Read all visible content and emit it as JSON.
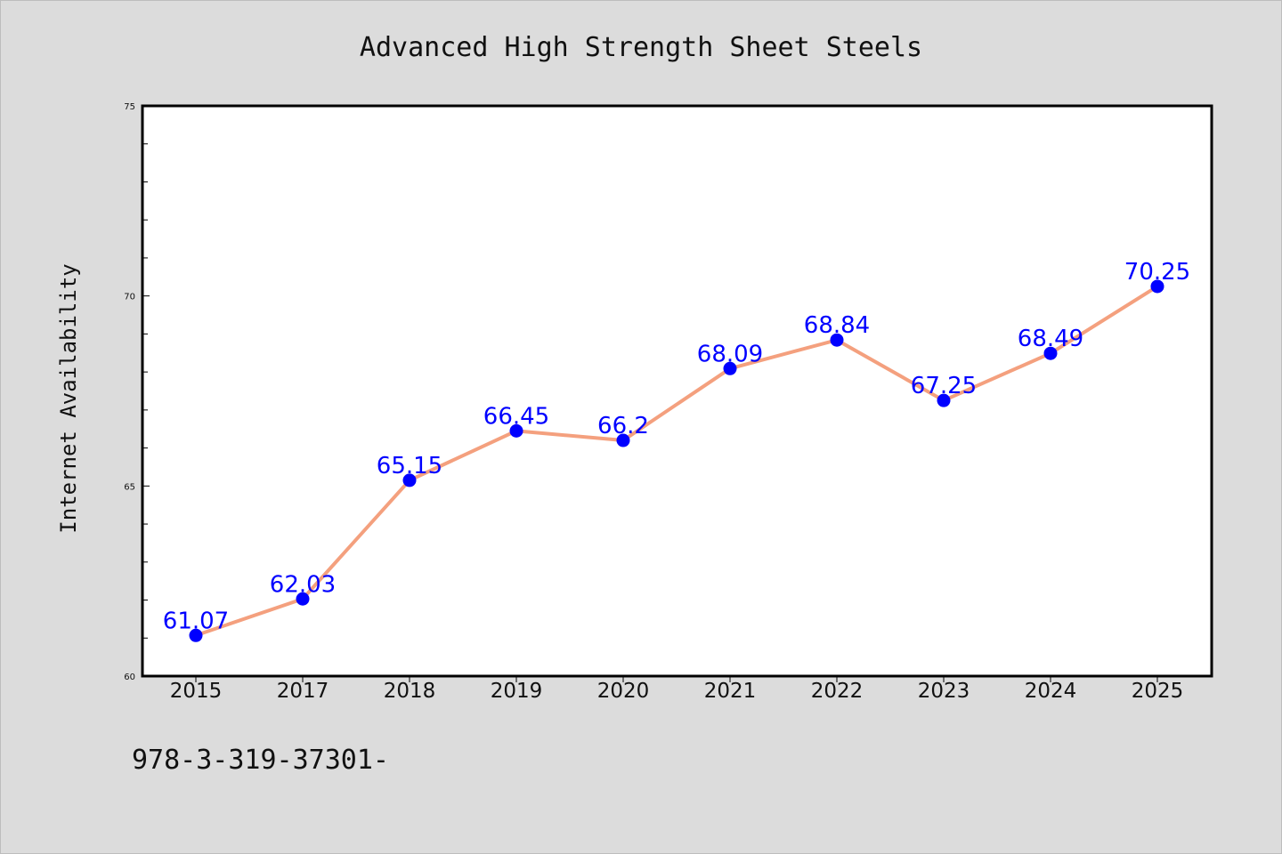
{
  "colors": {
    "background": "#dcdcdc",
    "plot_background": "#ffffff",
    "line": "#f4a07e",
    "marker": "#0000ff",
    "data_label": "#0000ff",
    "axis": "#000000"
  },
  "footnote": "978-3-319-37301-",
  "chart_data": {
    "type": "line",
    "title": "Advanced High Strength Sheet Steels",
    "xlabel": "",
    "ylabel": "Internet Availability",
    "categories": [
      "2015",
      "2017",
      "2018",
      "2019",
      "2020",
      "2021",
      "2022",
      "2023",
      "2024",
      "2025"
    ],
    "series": [
      {
        "values": [
          61.07,
          62.03,
          65.15,
          66.45,
          66.2,
          68.09,
          68.84,
          67.25,
          68.49,
          70.25
        ],
        "labels": [
          "61.07",
          "62.03",
          "65.15",
          "66.45",
          "66.2",
          "68.09",
          "68.84",
          "67.25",
          "68.49",
          "70.25"
        ]
      }
    ],
    "ylim": [
      60,
      75
    ],
    "yticks": [
      60,
      65,
      70,
      75
    ],
    "y_minor_step": 1,
    "grid": false,
    "legend": "none"
  }
}
